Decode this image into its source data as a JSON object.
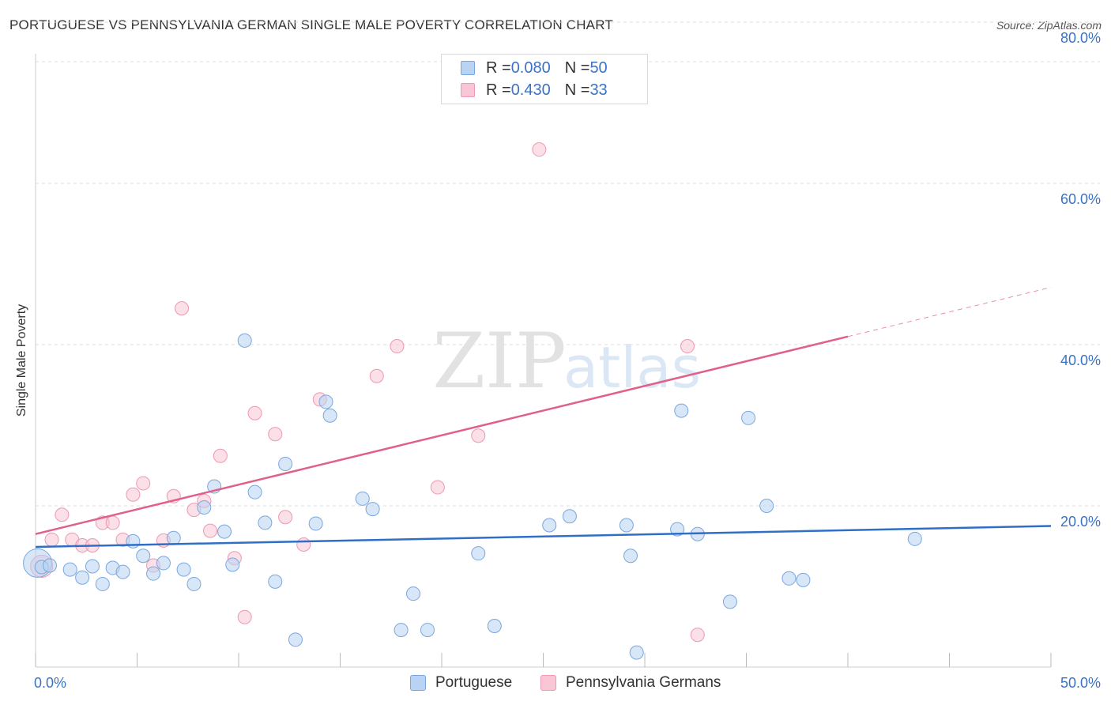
{
  "title": "PORTUGUESE VS PENNSYLVANIA GERMAN SINGLE MALE POVERTY CORRELATION CHART",
  "source": "Source: ZipAtlas.com",
  "watermark": {
    "zip": "ZIP",
    "atlas": "atlas"
  },
  "colors": {
    "portuguese_fill": "#b8d3f3",
    "portuguese_stroke": "#7aa6de",
    "portuguese_line": "#2f6fc6",
    "pagerman_fill": "#f8c6d5",
    "pagerman_stroke": "#ee98b3",
    "pagerman_line": "#e0608a",
    "tick_label": "#3a72c4",
    "grid": "#dddddd"
  },
  "legend": {
    "rows": [
      {
        "r_label": "R = ",
        "r_value": "0.080",
        "n_label": "N = ",
        "n_value": "50"
      },
      {
        "r_label": "R = ",
        "r_value": "0.430",
        "n_label": "N = ",
        "n_value": "33"
      }
    ]
  },
  "chart_data": {
    "type": "scatter",
    "title": "PORTUGUESE VS PENNSYLVANIA GERMAN SINGLE MALE POVERTY CORRELATION CHART",
    "xlabel": "",
    "ylabel": "Single Male Poverty",
    "xlim": [
      0,
      50
    ],
    "ylim": [
      0,
      80
    ],
    "x_tick_labels": [
      "0.0%",
      "50.0%"
    ],
    "y_ticks": [
      20,
      40,
      60,
      80
    ],
    "y_tick_labels": [
      "20.0%",
      "40.0%",
      "60.0%",
      "80.0%"
    ],
    "grid": true,
    "legend_position": "top-center",
    "series": [
      {
        "name": "Portuguese",
        "R": 0.08,
        "N": 50,
        "trend": {
          "x": [
            0,
            50
          ],
          "y": [
            14.9,
            17.5
          ]
        },
        "points": [
          [
            0.1,
            12.9
          ],
          [
            0.3,
            12.4
          ],
          [
            0.7,
            12.6
          ],
          [
            1.7,
            12.1
          ],
          [
            2.3,
            11.1
          ],
          [
            2.8,
            12.5
          ],
          [
            3.3,
            10.3
          ],
          [
            3.8,
            12.3
          ],
          [
            4.3,
            11.8
          ],
          [
            4.8,
            15.6
          ],
          [
            5.3,
            13.8
          ],
          [
            5.8,
            11.6
          ],
          [
            6.3,
            12.9
          ],
          [
            6.8,
            16.0
          ],
          [
            7.3,
            12.1
          ],
          [
            7.8,
            10.3
          ],
          [
            8.3,
            19.8
          ],
          [
            8.8,
            22.4
          ],
          [
            9.3,
            16.8
          ],
          [
            9.7,
            12.7
          ],
          [
            10.3,
            40.5
          ],
          [
            10.8,
            21.7
          ],
          [
            11.3,
            17.9
          ],
          [
            11.8,
            10.6
          ],
          [
            12.3,
            25.2
          ],
          [
            12.8,
            3.4
          ],
          [
            13.8,
            17.8
          ],
          [
            14.3,
            32.9
          ],
          [
            14.5,
            31.2
          ],
          [
            16.1,
            20.9
          ],
          [
            16.6,
            19.6
          ],
          [
            18.0,
            4.6
          ],
          [
            18.6,
            9.1
          ],
          [
            19.3,
            4.6
          ],
          [
            21.8,
            14.1
          ],
          [
            22.6,
            5.1
          ],
          [
            25.3,
            17.6
          ],
          [
            26.3,
            18.7
          ],
          [
            29.1,
            17.6
          ],
          [
            29.3,
            13.8
          ],
          [
            29.6,
            1.8
          ],
          [
            31.6,
            17.1
          ],
          [
            31.8,
            31.8
          ],
          [
            32.6,
            16.5
          ],
          [
            34.2,
            8.1
          ],
          [
            35.1,
            30.9
          ],
          [
            36.0,
            20.0
          ],
          [
            37.1,
            11.0
          ],
          [
            37.8,
            10.8
          ],
          [
            43.3,
            15.9
          ]
        ]
      },
      {
        "name": "Pennsylvania Germans",
        "R": 0.43,
        "N": 33,
        "trend": {
          "x": [
            0,
            40
          ],
          "y": [
            16.5,
            41.0
          ]
        },
        "trend_dashed": {
          "x": [
            40,
            50
          ],
          "y": [
            41.0,
            47.1
          ]
        },
        "points": [
          [
            0.3,
            12.5
          ],
          [
            0.8,
            15.8
          ],
          [
            1.3,
            18.9
          ],
          [
            1.8,
            15.8
          ],
          [
            2.3,
            15.1
          ],
          [
            2.8,
            15.1
          ],
          [
            3.3,
            17.9
          ],
          [
            3.8,
            17.9
          ],
          [
            4.3,
            15.8
          ],
          [
            4.8,
            21.4
          ],
          [
            5.3,
            22.8
          ],
          [
            5.8,
            12.6
          ],
          [
            6.3,
            15.7
          ],
          [
            6.8,
            21.2
          ],
          [
            7.2,
            44.5
          ],
          [
            7.8,
            19.5
          ],
          [
            8.3,
            20.6
          ],
          [
            8.6,
            16.9
          ],
          [
            9.1,
            26.2
          ],
          [
            9.8,
            13.5
          ],
          [
            10.3,
            6.2
          ],
          [
            10.8,
            31.5
          ],
          [
            11.8,
            28.9
          ],
          [
            12.3,
            18.6
          ],
          [
            13.2,
            15.2
          ],
          [
            14.0,
            33.2
          ],
          [
            16.8,
            36.1
          ],
          [
            17.8,
            39.8
          ],
          [
            19.8,
            22.3
          ],
          [
            21.8,
            28.7
          ],
          [
            24.8,
            64.2
          ],
          [
            32.1,
            39.8
          ],
          [
            32.6,
            4.0
          ]
        ]
      }
    ]
  }
}
